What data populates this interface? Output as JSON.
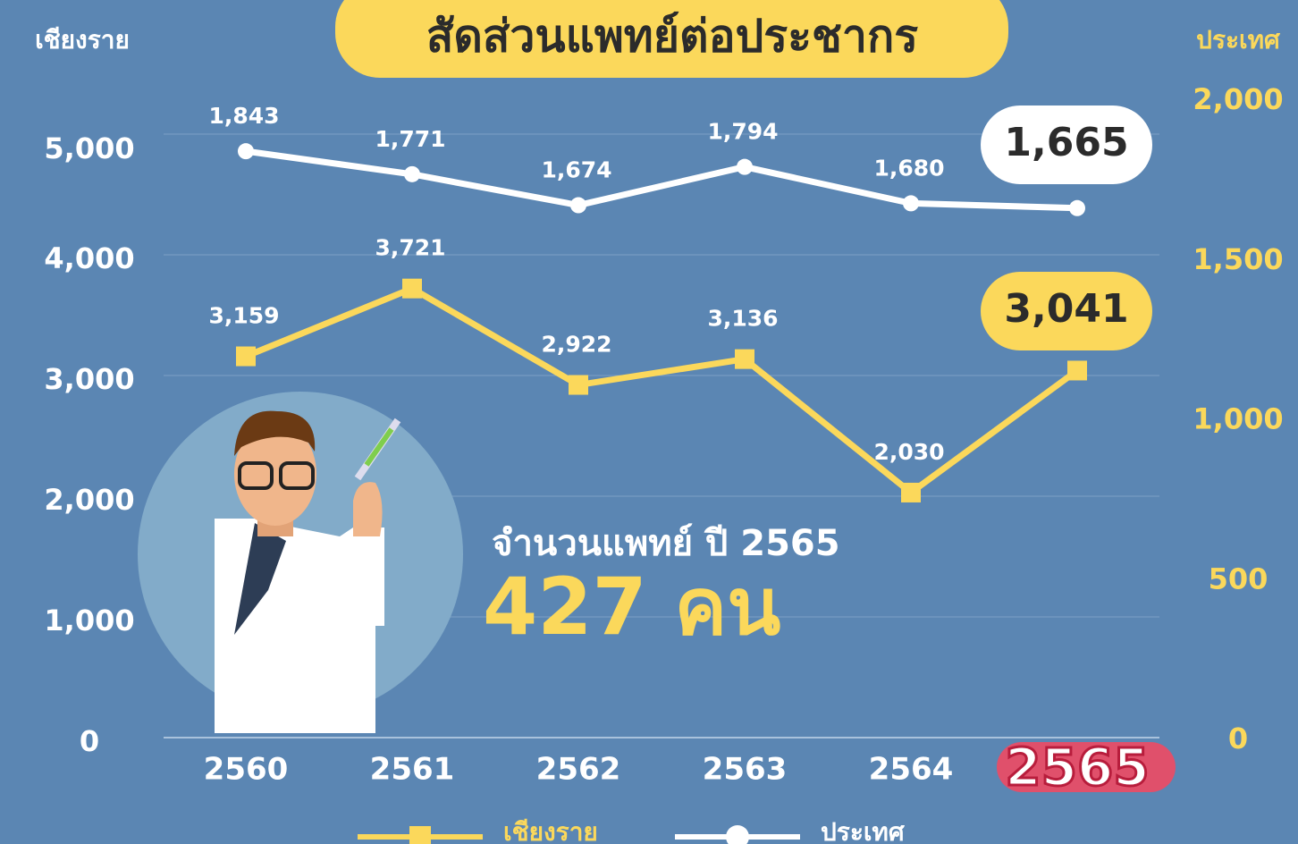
{
  "chart_data": {
    "type": "line",
    "title": "สัดส่วนแพทย์ต่อประชากร",
    "y_label": "เชียงราย",
    "y2_label": "ประเทศ",
    "annotations": [
      "จำนวนแพทย์ ปี 2565",
      "427 คน"
    ],
    "categories": [
      "2560",
      "2561",
      "2562",
      "2563",
      "2564",
      "2565"
    ],
    "series": [
      {
        "name": "เชียงราย",
        "color": "#fbd85b",
        "marker": "square",
        "values": [
          3159,
          3721,
          2922,
          3136,
          2030,
          3041
        ],
        "value_labels": [
          "3,159",
          "3,721",
          "2,922",
          "3,136",
          "2,030",
          "3,041"
        ]
      },
      {
        "name": "ประเทศ",
        "color": "#ffffff",
        "marker": "circle",
        "axis": "y2",
        "values": [
          1843,
          1771,
          1674,
          1794,
          1680,
          1665
        ],
        "value_labels": [
          "1,843",
          "1,771",
          "1,674",
          "1,794",
          "1,680",
          "1,665"
        ]
      }
    ],
    "ylim": [
      0,
      5000
    ],
    "yticks": [
      0,
      {
        "value": 1000,
        "label": "1,000"
      },
      {
        "value": 2000,
        "label": "2,000"
      },
      {
        "value": 3000,
        "label": "3,000"
      },
      {
        "value": 4000,
        "label": "4,000"
      },
      {
        "value": 5000,
        "label": "5,000"
      }
    ],
    "y2lim": [
      0,
      2000
    ],
    "y2ticks": [
      0,
      500,
      {
        "value": 1000,
        "label": "1,000"
      },
      {
        "value": 1500,
        "label": "1,500"
      },
      {
        "value": 2000,
        "label": "2,000"
      }
    ],
    "grid": true
  }
}
